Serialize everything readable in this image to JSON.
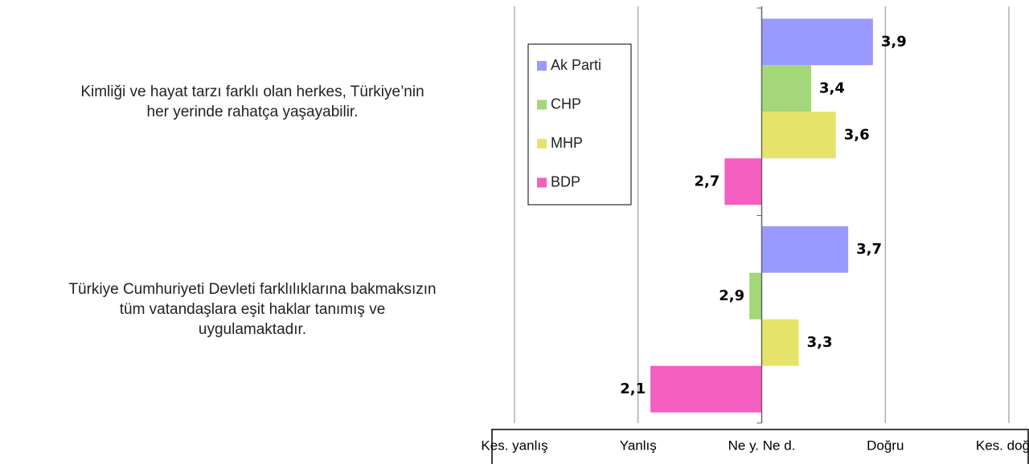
{
  "chart_data": {
    "type": "bar",
    "orientation": "horizontal",
    "baseline": 3,
    "categories": [
      "Kimliği ve hayat tarzı farklı olan herkes, Türkiye’nin\nher yerinde rahatça yaşayabilir.",
      "Türkiye Cumhuriyeti Devleti farklılıklarına bakmaksızın\ntüm vatandaşlara eşit haklar tanımış ve\nuygulamaktadır."
    ],
    "series": [
      {
        "name": "Ak Parti",
        "color": "#9999ff",
        "values": [
          3.9,
          3.7
        ],
        "value_labels": [
          "3,9",
          "3,7"
        ]
      },
      {
        "name": "CHP",
        "color": "#a3d77a",
        "values": [
          3.4,
          2.9
        ],
        "value_labels": [
          "3,4",
          "2,9"
        ]
      },
      {
        "name": "MHP",
        "color": "#e6e36a",
        "values": [
          3.6,
          3.3
        ],
        "value_labels": [
          "3,6",
          "3,3"
        ]
      },
      {
        "name": "BDP",
        "color": "#f45fc0",
        "values": [
          2.7,
          2.1
        ],
        "value_labels": [
          "2,7",
          "2,1"
        ]
      }
    ],
    "xlim": [
      1,
      5
    ],
    "xticks": [
      {
        "value": 1,
        "label": "Kes. yanlış"
      },
      {
        "value": 2,
        "label": "Yanlış"
      },
      {
        "value": 3,
        "label": "Ne y. Ne d."
      },
      {
        "value": 4,
        "label": "Doğru"
      },
      {
        "value": 5,
        "label": "Kes. doğru"
      }
    ],
    "grid": true,
    "legend": "left"
  }
}
